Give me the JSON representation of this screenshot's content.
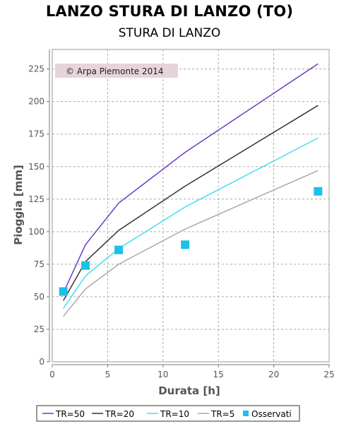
{
  "page": {
    "title": "LANZO STURA DI LANZO (TO)",
    "subtitle": "STURA DI LANZO",
    "watermark": "© Arpa Piemonte 2014"
  },
  "chart_data": {
    "type": "line",
    "xlabel": "Durata [h]",
    "ylabel": "Pioggia [mm]",
    "xlim": [
      0,
      25
    ],
    "ylim": [
      0,
      240
    ],
    "xticks": [
      0,
      5,
      10,
      15,
      20,
      25
    ],
    "yticks": [
      0,
      25,
      50,
      75,
      100,
      125,
      150,
      175,
      200,
      225
    ],
    "grid": true,
    "legend_position": "bottom",
    "series": [
      {
        "name": "TR=50",
        "color": "#6a3bc4",
        "kind": "line",
        "x": [
          1,
          3,
          6,
          12,
          24
        ],
        "y": [
          53,
          90,
          122,
          161,
          229
        ]
      },
      {
        "name": "TR=20",
        "color": "#333333",
        "kind": "line",
        "x": [
          1,
          3,
          6,
          12,
          24
        ],
        "y": [
          47,
          77,
          101,
          135,
          197
        ]
      },
      {
        "name": "TR=10",
        "color": "#3ee0ec",
        "kind": "line",
        "x": [
          1,
          3,
          6,
          12,
          24
        ],
        "y": [
          41,
          66,
          87,
          119,
          172
        ]
      },
      {
        "name": "TR=5",
        "color": "#a9a9a9",
        "kind": "line",
        "x": [
          1,
          3,
          6,
          12,
          24
        ],
        "y": [
          35,
          56,
          75,
          102,
          147
        ]
      },
      {
        "name": "Osservati",
        "color": "#1cc0e8",
        "kind": "marker",
        "x": [
          1,
          3,
          6,
          12,
          24
        ],
        "y": [
          54,
          74,
          86,
          90,
          131
        ]
      }
    ]
  }
}
